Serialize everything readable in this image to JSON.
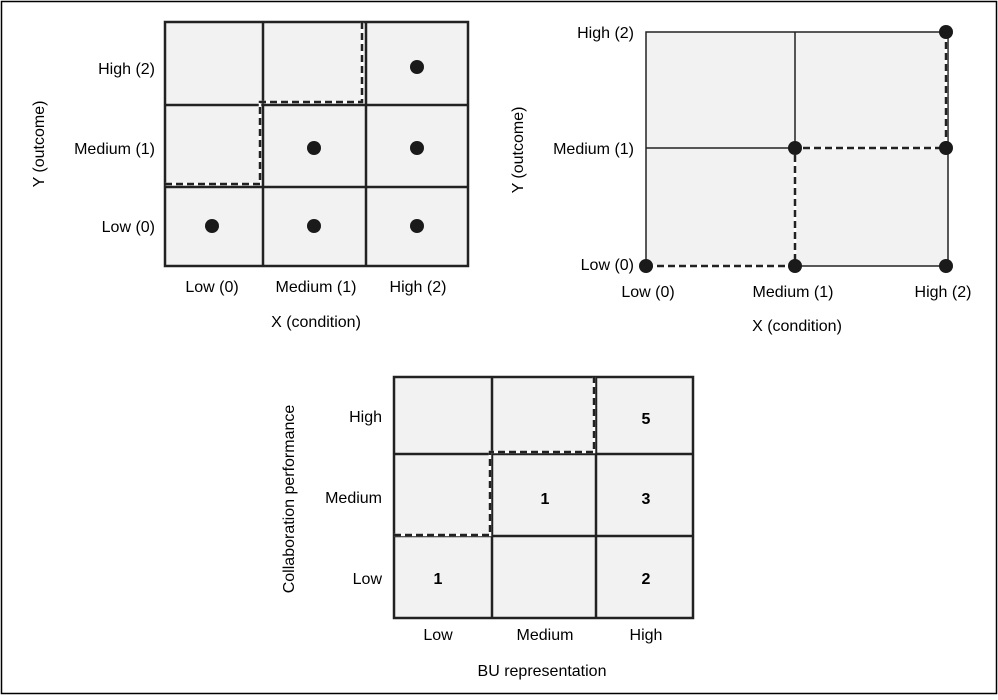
{
  "panel_a": {
    "y_axis_label": "Y (outcome)",
    "x_axis_label": "X (condition)",
    "row_labels": [
      "High (2)",
      "Medium (1)",
      "Low (0)"
    ],
    "col_labels": [
      "Low (0)",
      "Medium (1)",
      "High (2)"
    ],
    "dots": [
      {
        "x": 0,
        "y": 0
      },
      {
        "x": 1,
        "y": 0
      },
      {
        "x": 2,
        "y": 0
      },
      {
        "x": 1,
        "y": 1
      },
      {
        "x": 2,
        "y": 1
      },
      {
        "x": 2,
        "y": 2
      }
    ]
  },
  "panel_b": {
    "y_axis_label": "Y (outcome)",
    "x_axis_label": "X (condition)",
    "y_tick_labels": [
      "High (2)",
      "Medium (1)",
      "Low (0)"
    ],
    "x_tick_labels": [
      "Low (0)",
      "Medium (1)",
      "High (2)"
    ],
    "points": [
      {
        "x": 0,
        "y": 0
      },
      {
        "x": 1,
        "y": 0
      },
      {
        "x": 2,
        "y": 0
      },
      {
        "x": 1,
        "y": 1
      },
      {
        "x": 2,
        "y": 1
      },
      {
        "x": 2,
        "y": 2
      }
    ]
  },
  "panel_c": {
    "y_axis_label": "Collaboration performance",
    "x_axis_label": "BU representation",
    "row_labels": [
      "High",
      "Medium",
      "Low"
    ],
    "col_labels": [
      "Low",
      "Medium",
      "High"
    ],
    "counts": [
      {
        "x": 0,
        "y": 0,
        "value": "1"
      },
      {
        "x": 1,
        "y": 1,
        "value": "1"
      },
      {
        "x": 2,
        "y": 0,
        "value": "2"
      },
      {
        "x": 2,
        "y": 1,
        "value": "3"
      },
      {
        "x": 2,
        "y": 2,
        "value": "5"
      }
    ]
  }
}
